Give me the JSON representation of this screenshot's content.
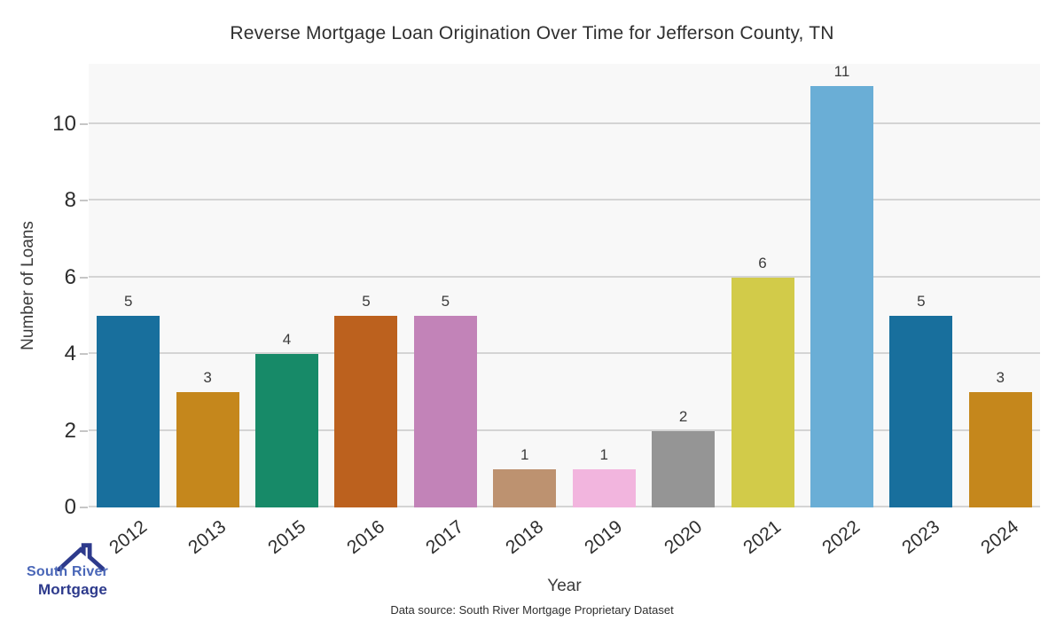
{
  "chart_data": {
    "type": "bar",
    "title": "Reverse Mortgage Loan Origination Over Time for Jefferson County, TN",
    "categories": [
      "2012",
      "2013",
      "2015",
      "2016",
      "2017",
      "2018",
      "2019",
      "2020",
      "2021",
      "2022",
      "2023",
      "2024"
    ],
    "values": [
      5,
      3,
      4,
      5,
      5,
      1,
      1,
      2,
      6,
      11,
      5,
      3
    ],
    "bar_colors": [
      "#186f9d",
      "#c5871c",
      "#178a68",
      "#bc611e",
      "#c283b8",
      "#bd9270",
      "#f2b5de",
      "#959595",
      "#d2cb49",
      "#6aaed6",
      "#186f9d",
      "#c5871c"
    ],
    "xlabel": "Year",
    "ylabel": "Number of Loans",
    "ylim": [
      0,
      11.6
    ],
    "yticks": [
      0,
      2,
      4,
      6,
      8,
      10
    ],
    "grid": true,
    "legend_position": "none",
    "show_value_labels": true
  },
  "footer": {
    "data_source": "Data source: South River Mortgage Proprietary Dataset"
  },
  "logo": {
    "line1": "South River",
    "line2": "Mortgage",
    "line1_color": "#4a67b8",
    "line2_color": "#2d3a8c",
    "roof_color": "#2d3a8c"
  },
  "colors": {
    "plot_bg": "#f8f8f8",
    "gridline": "#d4d4d4",
    "title_text": "#2f2f2f"
  }
}
